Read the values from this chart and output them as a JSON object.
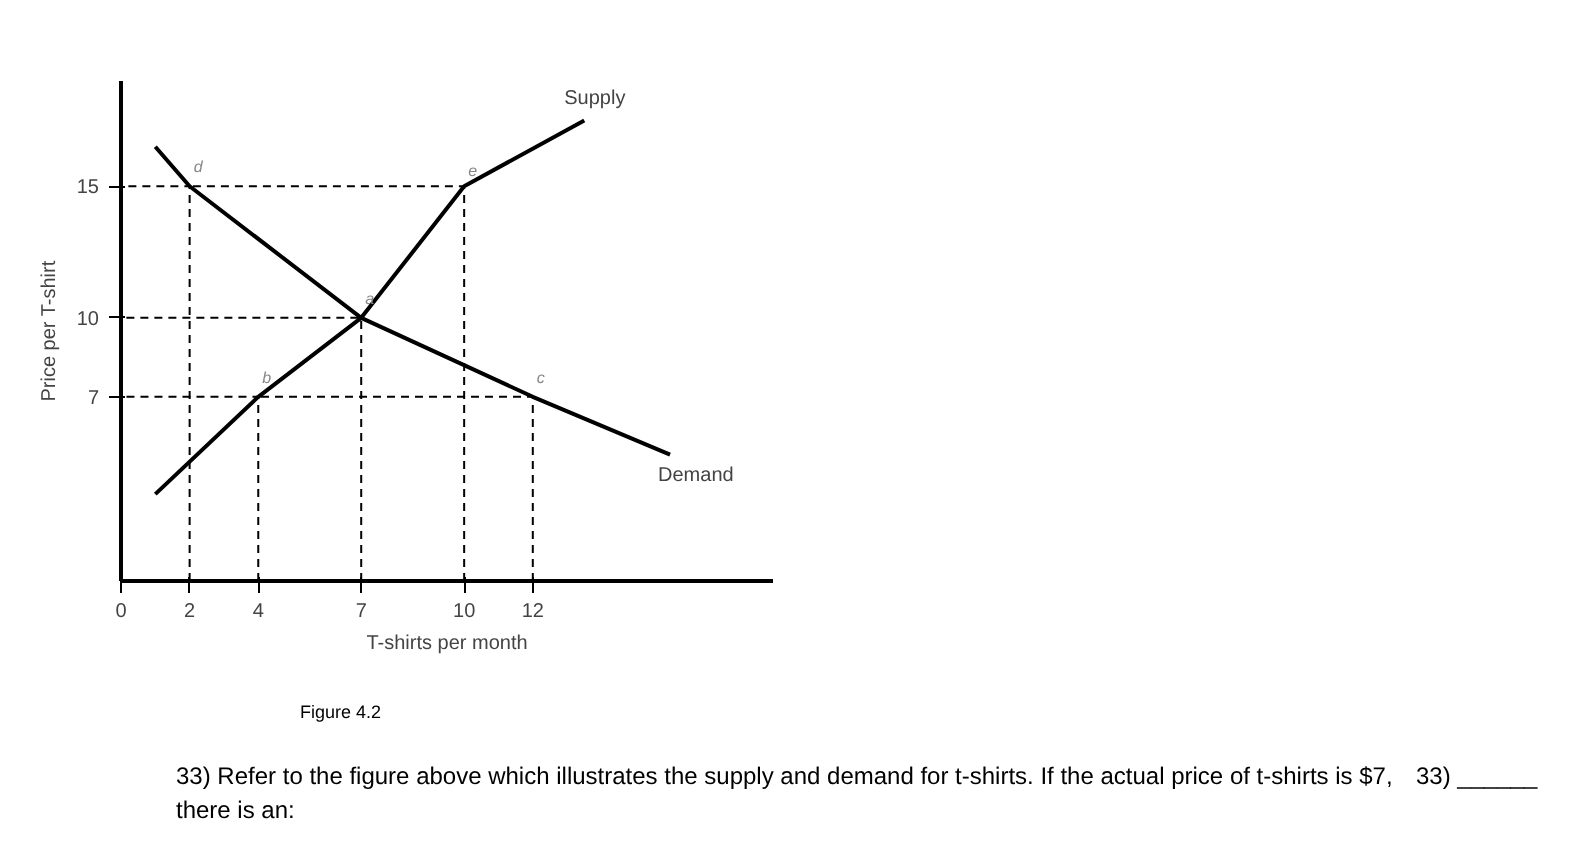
{
  "chart_data": {
    "type": "line",
    "xlabel": "T-shirts per month",
    "ylabel": "Price per T-shirt",
    "xlim": [
      0,
      19
    ],
    "ylim": [
      0,
      19
    ],
    "xticks": [
      0,
      2,
      4,
      7,
      10,
      12
    ],
    "yticks": [
      7,
      10,
      15
    ],
    "grid": false,
    "marker": "none",
    "series": [
      {
        "name": "Supply",
        "color": "#000000",
        "line_style": "solid",
        "x": [
          1,
          4,
          7,
          10,
          13.5
        ],
        "values": [
          3.3,
          7,
          10,
          15,
          17.5
        ]
      },
      {
        "name": "Demand",
        "color": "#000000",
        "line_style": "solid",
        "x": [
          1,
          2,
          7,
          12,
          16
        ],
        "values": [
          16.5,
          15,
          10,
          7,
          4.8
        ]
      },
      {
        "color": "#000000",
        "line_style": "dashed",
        "x": [
          2,
          2,
          0
        ],
        "values": [
          0,
          15,
          15
        ]
      },
      {
        "color": "#000000",
        "line_style": "dashed",
        "x": [
          10,
          10,
          2
        ],
        "values": [
          0,
          15,
          15
        ]
      },
      {
        "color": "#000000",
        "line_style": "dashed",
        "x": [
          7,
          7,
          0
        ],
        "values": [
          0,
          10,
          10
        ]
      },
      {
        "color": "#000000",
        "line_style": "dashed",
        "x": [
          4,
          4,
          0
        ],
        "values": [
          0,
          7,
          7
        ]
      },
      {
        "color": "#000000",
        "line_style": "dashed",
        "x": [
          12,
          12,
          4
        ],
        "values": [
          0,
          7,
          7
        ]
      }
    ],
    "annotations": [
      {
        "text": "d",
        "x": 2,
        "y": 15
      },
      {
        "text": "e",
        "x": 10,
        "y": 15
      },
      {
        "text": "a",
        "x": 7,
        "y": 10
      },
      {
        "text": "b",
        "x": 4,
        "y": 7
      },
      {
        "text": "c",
        "x": 12,
        "y": 7
      },
      "Figure 4.2",
      "33) Refer to the figure above which illustrates the supply and demand for t-shirts. If the actual price of t-shirts is $7, there is an:",
      "33) ______"
    ]
  }
}
